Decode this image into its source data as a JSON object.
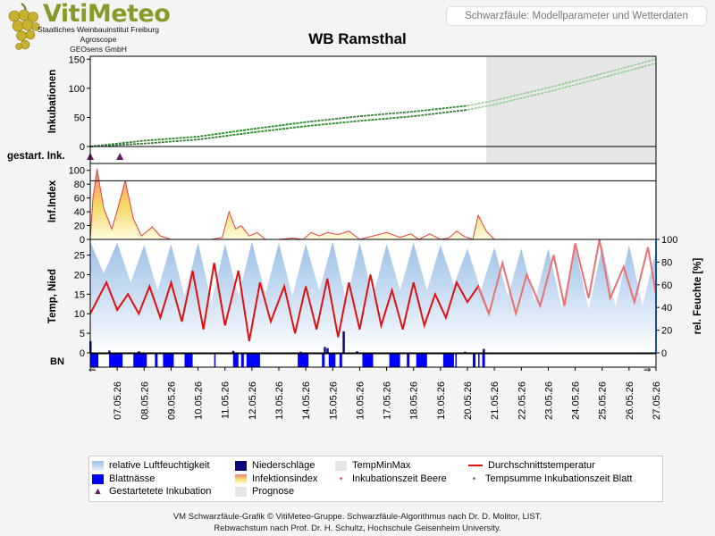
{
  "logo": {
    "title": "VitiMeteo",
    "lines": [
      "Staatliches Weinbauinstitut Freiburg",
      "Agroscope",
      "GEOsens GmbH"
    ]
  },
  "header": {
    "label": "Schwarzfäule: Modellparameter und Wetterdaten"
  },
  "colors": {
    "incubation": "#2a8a2a",
    "incubation_forecast": "#8fcf8f",
    "infection_top": "#e04040",
    "infection_fill": "#f6e070",
    "humidity": "#a9c8ea",
    "temperature": "#e01010",
    "precipitation": "#0a0a7a",
    "leaf_wetness": "#0000ff",
    "incubation_marker": "#6a1a6a",
    "forecast_bg": "#e6e6e6"
  },
  "chart_data": [
    {
      "type": "line",
      "panel": "incubation",
      "title": "WB Ramsthal",
      "ylabel": "Inkubationen",
      "ylim": [
        0,
        155
      ],
      "yticks": [
        0,
        50,
        100,
        150
      ],
      "x_start": "2026-05-06",
      "x_end": "2026-05-27",
      "forecast_start": "2026-05-20.7",
      "series": [
        {
          "name": "Inkubationszeit Beere",
          "x": [
            "2026-05-06",
            "2026-05-08",
            "2026-05-10",
            "2026-05-12",
            "2026-05-14",
            "2026-05-16",
            "2026-05-18",
            "2026-05-20",
            "2026-05-21",
            "2026-05-23",
            "2026-05-25",
            "2026-05-27"
          ],
          "y": [
            0,
            10,
            17,
            30,
            42,
            52,
            60,
            70,
            79,
            101,
            125,
            150
          ]
        },
        {
          "name": "Tempsumme Inkubationszeit Blatt",
          "x": [
            "2026-05-06",
            "2026-05-08",
            "2026-05-10",
            "2026-05-12",
            "2026-05-14",
            "2026-05-16",
            "2026-05-18",
            "2026-05-20",
            "2026-05-21",
            "2026-05-23",
            "2026-05-25",
            "2026-05-27"
          ],
          "y": [
            0,
            5,
            12,
            24,
            35,
            44,
            52,
            63,
            72,
            94,
            118,
            143
          ]
        }
      ]
    },
    {
      "type": "scatter",
      "panel": "started_incubations",
      "ylabel": "gestart. Ink.",
      "series": [
        {
          "name": "Gestartetete Inkubation",
          "x": [
            "2026-05-06",
            "2026-05-07.1"
          ]
        }
      ]
    },
    {
      "type": "area",
      "panel": "infection_index",
      "ylabel": "Inf.Index",
      "ylim": [
        0,
        100
      ],
      "yticks": [
        0,
        20,
        40,
        60,
        80,
        100
      ],
      "threshold": 85,
      "series": [
        {
          "name": "Infektionsindex",
          "x": [
            "2026-05-06",
            "2026-05-06.1",
            "2026-05-06.25",
            "2026-05-06.5",
            "2026-05-06.8",
            "2026-05-07",
            "2026-05-07.3",
            "2026-05-07.6",
            "2026-05-07.9",
            "2026-05-08.3",
            "2026-05-08.6",
            "2026-05-09",
            "2026-05-10.5",
            "2026-05-10.9",
            "2026-05-11.15",
            "2026-05-11.4",
            "2026-05-11.6",
            "2026-05-11.9",
            "2026-05-12.2",
            "2026-05-12.5",
            "2026-05-13",
            "2026-05-13.5",
            "2026-05-13.9",
            "2026-05-14.2",
            "2026-05-14.5",
            "2026-05-14.8",
            "2026-05-15.2",
            "2026-05-15.6",
            "2026-05-16",
            "2026-05-17",
            "2026-05-17.5",
            "2026-05-17.9",
            "2026-05-18.2",
            "2026-05-18.6",
            "2026-05-19",
            "2026-05-19.3",
            "2026-05-19.6",
            "2026-05-19.9",
            "2026-05-20.2",
            "2026-05-20.4",
            "2026-05-20.7",
            "2026-05-21"
          ],
          "y": [
            0,
            60,
            102,
            45,
            15,
            42,
            85,
            30,
            5,
            18,
            5,
            0,
            0,
            3,
            40,
            15,
            20,
            5,
            10,
            0,
            0,
            2,
            0,
            10,
            5,
            10,
            7,
            12,
            0,
            10,
            3,
            8,
            0,
            8,
            0,
            2,
            12,
            4,
            0,
            35,
            12,
            0
          ]
        }
      ]
    },
    {
      "type": "line",
      "panel": "weather",
      "ylabel": "Temp, Nied",
      "y2label": "rel. Feuchte [%]",
      "ylim": [
        0,
        29
      ],
      "yticks": [
        0,
        5,
        10,
        15,
        20,
        25
      ],
      "y2lim": [
        0,
        100
      ],
      "y2ticks": [
        0,
        20,
        40,
        60,
        80,
        100
      ],
      "series": [
        {
          "name": "Durchschnittstemperatur",
          "x": [
            "2026-05-06",
            "2026-05-06.6",
            "2026-05-07",
            "2026-05-07.4",
            "2026-05-07.8",
            "2026-05-08.2",
            "2026-05-08.6",
            "2026-05-09",
            "2026-05-09.4",
            "2026-05-09.8",
            "2026-05-10.2",
            "2026-05-10.6",
            "2026-05-11",
            "2026-05-11.5",
            "2026-05-11.9",
            "2026-05-12.3",
            "2026-05-12.7",
            "2026-05-13.2",
            "2026-05-13.6",
            "2026-05-14",
            "2026-05-14.4",
            "2026-05-14.8",
            "2026-05-15.2",
            "2026-05-15.6",
            "2026-05-16",
            "2026-05-16.4",
            "2026-05-16.8",
            "2026-05-17.2",
            "2026-05-17.6",
            "2026-05-18",
            "2026-05-18.4",
            "2026-05-18.8",
            "2026-05-19.2",
            "2026-05-19.6",
            "2026-05-20",
            "2026-05-20.4",
            "2026-05-20.8",
            "2026-05-21.3",
            "2026-05-21.8",
            "2026-05-22.2",
            "2026-05-22.7",
            "2026-05-23.2",
            "2026-05-23.6",
            "2026-05-24",
            "2026-05-24.5",
            "2026-05-24.9",
            "2026-05-25.3",
            "2026-05-25.8",
            "2026-05-26.2",
            "2026-05-26.7",
            "2026-05-27"
          ],
          "y": [
            10,
            18,
            11,
            15,
            10,
            17,
            9,
            18,
            8,
            21,
            6,
            23,
            7,
            21,
            3,
            18,
            8,
            17,
            5,
            17,
            6,
            19,
            4,
            18,
            6,
            20,
            7,
            16,
            6,
            18,
            7,
            15,
            9,
            18,
            13,
            17,
            10,
            23,
            10,
            20,
            12,
            25,
            12,
            28,
            14,
            29,
            14,
            22,
            13,
            27,
            15
          ]
        },
        {
          "name": "relative Luftfeuchtigkeit",
          "x": [
            "2026-05-06",
            "2026-05-06.5",
            "2026-05-07",
            "2026-05-07.5",
            "2026-05-08",
            "2026-05-08.5",
            "2026-05-09",
            "2026-05-09.5",
            "2026-05-10",
            "2026-05-10.5",
            "2026-05-11",
            "2026-05-11.5",
            "2026-05-12",
            "2026-05-12.5",
            "2026-05-13",
            "2026-05-13.5",
            "2026-05-14",
            "2026-05-14.5",
            "2026-05-15",
            "2026-05-15.5",
            "2026-05-16",
            "2026-05-16.5",
            "2026-05-17",
            "2026-05-17.5",
            "2026-05-18",
            "2026-05-18.5",
            "2026-05-19",
            "2026-05-19.5",
            "2026-05-20",
            "2026-05-20.5",
            "2026-05-21",
            "2026-05-21.5",
            "2026-05-22",
            "2026-05-22.5",
            "2026-05-23",
            "2026-05-23.5",
            "2026-05-24",
            "2026-05-24.5",
            "2026-05-25",
            "2026-05-25.5",
            "2026-05-26",
            "2026-05-26.5",
            "2026-05-27"
          ],
          "y": [
            98,
            70,
            97,
            62,
            95,
            55,
            96,
            50,
            97,
            45,
            96,
            50,
            98,
            52,
            97,
            50,
            96,
            55,
            98,
            45,
            97,
            50,
            96,
            55,
            97,
            55,
            95,
            60,
            92,
            55,
            93,
            50,
            92,
            45,
            92,
            40,
            93,
            38,
            94,
            40,
            95,
            42,
            90
          ]
        },
        {
          "name": "Niederschläge",
          "x": [
            "2026-05-06",
            "2026-05-06.7",
            "2026-05-07.8",
            "2026-05-11.3",
            "2026-05-13.8",
            "2026-05-14.7",
            "2026-05-14.8",
            "2026-05-15.4",
            "2026-05-15.9",
            "2026-05-19.9",
            "2026-05-20.6"
          ],
          "y": [
            3,
            0.6,
            0.4,
            0.5,
            0.3,
            1.5,
            1.2,
            5.5,
            0.4,
            0.3,
            1
          ]
        }
      ]
    },
    {
      "type": "bar",
      "panel": "leaf_wetness",
      "ylabel": "BN",
      "series": [
        {
          "name": "Blattnässe",
          "start": [
            "2026-05-06",
            "2026-05-06.7",
            "2026-05-07.6",
            "2026-05-08.4",
            "2026-05-08.7",
            "2026-05-09.5",
            "2026-05-10.6",
            "2026-05-11.3",
            "2026-05-11.6",
            "2026-05-11.8",
            "2026-05-13.7",
            "2026-05-14.6",
            "2026-05-14.85",
            "2026-05-15.25",
            "2026-05-16.1",
            "2026-05-17.1",
            "2026-05-17.75",
            "2026-05-18.1",
            "2026-05-19.1",
            "2026-05-19.55",
            "2026-05-20.2",
            "2026-05-20.4",
            "2026-05-20.55"
          ],
          "end": [
            "2026-05-06.3",
            "2026-05-07.2",
            "2026-05-08.1",
            "2026-05-08.5",
            "2026-05-09.1",
            "2026-05-09.8",
            "2026-05-10.65",
            "2026-05-11.5",
            "2026-05-11.7",
            "2026-05-12.3",
            "2026-05-14.1",
            "2026-05-14.7",
            "2026-05-15.1",
            "2026-05-15.35",
            "2026-05-16.5",
            "2026-05-17.5",
            "2026-05-17.85",
            "2026-05-18.5",
            "2026-05-19.5",
            "2026-05-19.6",
            "2026-05-20.3",
            "2026-05-20.45",
            "2026-05-20.65"
          ]
        }
      ]
    }
  ],
  "panel_labels": {
    "incubation": "Inkubationen",
    "started": "gestart. Ink.",
    "infection": "Inf.Index",
    "weather": "Temp, Nied",
    "humidity": "rel. Feuchte [%]",
    "leaf": "BN"
  },
  "x_tick_labels": [
    "07.05.26",
    "08.05.26",
    "09.05.26",
    "10.05.26",
    "11.05.26",
    "12.05.26",
    "13.05.26",
    "14.05.26",
    "15.05.26",
    "16.05.26",
    "17.05.26",
    "18.05.26",
    "19.05.26",
    "20.05.26",
    "21.05.26",
    "22.05.26",
    "23.05.26",
    "24.05.26",
    "25.05.26",
    "26.05.26",
    "27.05.26"
  ],
  "legend": [
    {
      "label": "relative Luftfeuchtigkeit",
      "icon": "humidity-swatch"
    },
    {
      "label": "Niederschläge",
      "icon": "precip-swatch"
    },
    {
      "label": "TempMinMax",
      "icon": "tempminmax-swatch"
    },
    {
      "label": "Durchschnittstemperatur",
      "icon": "temp-line"
    },
    {
      "label": "Blattnässe",
      "icon": "leaf-swatch"
    },
    {
      "label": "Infektionsindex",
      "icon": "infection-swatch"
    },
    {
      "label": "Inkubationszeit Beere",
      "icon": "dot-red"
    },
    {
      "label": "Tempsumme Inkubationszeit Blatt",
      "icon": "dot-green"
    },
    {
      "label": "Gestartetete Inkubation",
      "icon": "triangle-marker"
    },
    {
      "label": "Prognose",
      "icon": "forecast-swatch"
    }
  ],
  "footer": {
    "line1": "VM Schwarzfäule-Grafik © VitiMeteo-Gruppe. Schwarzfäule-Algorithmus nach Dr. D. Molitor, LIST.",
    "line2": "Rebwachstum nach Prof. Dr. H. Schultz, Hochschule Geisenheim University."
  }
}
